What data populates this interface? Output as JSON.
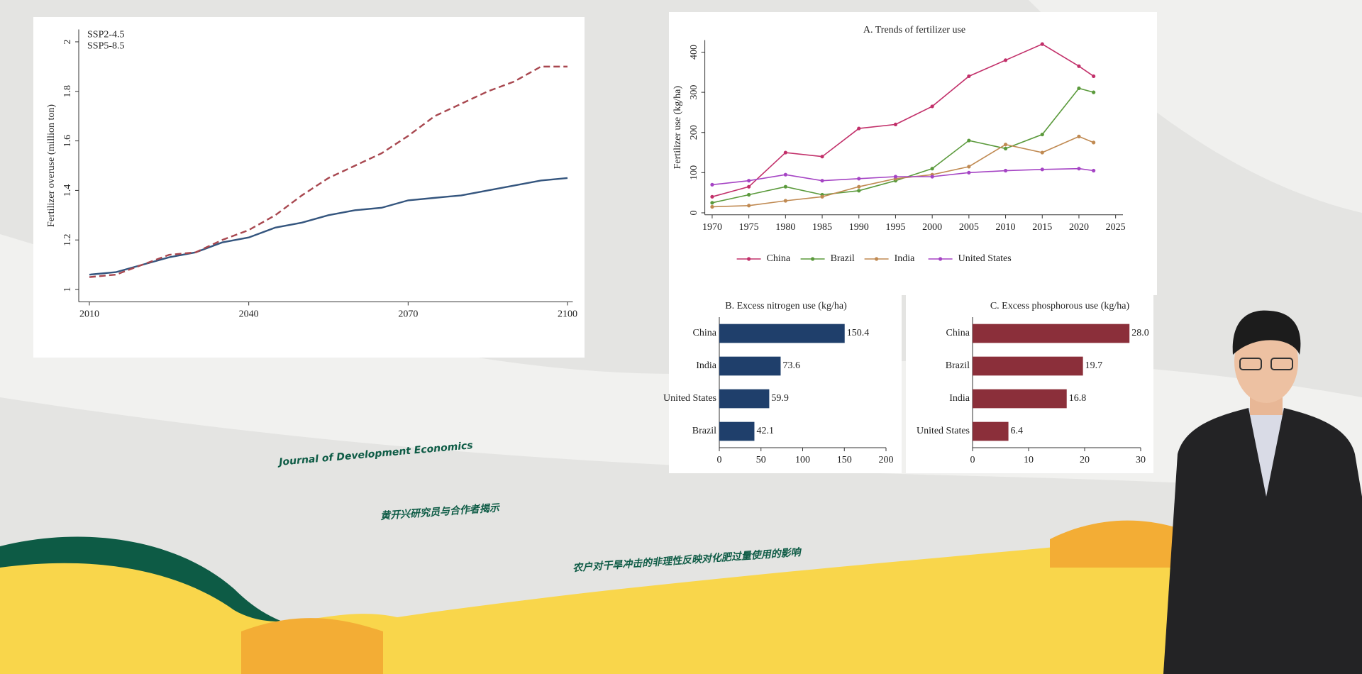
{
  "banner": {
    "journal": "Journal of Development Economics",
    "line1": "黄开兴研究员与合作者揭示",
    "line2": "农户对干旱冲击的非理性反映对化肥过量使用的影响"
  },
  "chart_data": [
    {
      "type": "line",
      "ylabel": "Fertilizer overuse (million ton)",
      "legend": "upper left",
      "x": [
        2010,
        2015,
        2020,
        2025,
        2030,
        2035,
        2040,
        2045,
        2050,
        2055,
        2060,
        2065,
        2070,
        2075,
        2080,
        2085,
        2090,
        2095,
        2100
      ],
      "series": [
        {
          "name": "SSP2-4.5",
          "color": "#34557e",
          "line_style": "solid",
          "values": [
            1.06,
            1.07,
            1.1,
            1.13,
            1.15,
            1.19,
            1.21,
            1.25,
            1.27,
            1.3,
            1.32,
            1.33,
            1.36,
            1.37,
            1.38,
            1.4,
            1.42,
            1.44,
            1.45
          ]
        },
        {
          "name": "SSP5-8.5",
          "color": "#a8474f",
          "line_style": "dashed",
          "values": [
            1.05,
            1.06,
            1.1,
            1.14,
            1.15,
            1.2,
            1.24,
            1.3,
            1.38,
            1.45,
            1.5,
            1.55,
            1.62,
            1.7,
            1.75,
            1.8,
            1.84,
            1.9,
            1.9
          ]
        }
      ],
      "xlim": [
        2008,
        2101
      ],
      "xticks": [
        2010,
        2040,
        2070,
        2100
      ],
      "ylim": [
        0.95,
        2.05
      ],
      "yticks": [
        1,
        1.2,
        1.4,
        1.6,
        1.8,
        2
      ]
    },
    {
      "type": "line",
      "title": "A. Trends of fertilizer use",
      "ylabel": "Fertilizer use (kg/ha)",
      "legend": "bottom",
      "markers": true,
      "x": [
        1970,
        1975,
        1980,
        1985,
        1990,
        1995,
        2000,
        2005,
        2010,
        2015,
        2020,
        2022
      ],
      "series": [
        {
          "name": "China",
          "color": "#c2306a",
          "line_style": "solid",
          "values": [
            40,
            65,
            150,
            140,
            210,
            220,
            265,
            340,
            380,
            420,
            365,
            340
          ]
        },
        {
          "name": "Brazil",
          "color": "#5b9a3c",
          "line_style": "solid",
          "values": [
            25,
            45,
            65,
            45,
            55,
            80,
            110,
            180,
            160,
            195,
            310,
            300
          ]
        },
        {
          "name": "India",
          "color": "#c08a52",
          "line_style": "solid",
          "values": [
            15,
            18,
            30,
            40,
            65,
            85,
            95,
            115,
            170,
            150,
            190,
            175
          ]
        },
        {
          "name": "United States",
          "color": "#a544c4",
          "line_style": "solid",
          "values": [
            70,
            80,
            95,
            80,
            85,
            90,
            90,
            100,
            105,
            108,
            110,
            105
          ]
        }
      ],
      "xlim": [
        1969,
        2026
      ],
      "xticks": [
        1970,
        1975,
        1980,
        1985,
        1990,
        1995,
        2000,
        2005,
        2010,
        2015,
        2020,
        2025
      ],
      "ylim": [
        -5,
        430
      ],
      "yticks": [
        0,
        100,
        200,
        300,
        400
      ]
    },
    {
      "type": "hbar",
      "title": "B. Excess nitrogen use (kg/ha)",
      "color": "#1f3f6b",
      "categories": [
        "China",
        "India",
        "United States",
        "Brazil"
      ],
      "values": [
        150.4,
        73.6,
        59.9,
        42.1
      ],
      "xlim": [
        0,
        200
      ],
      "xticks": [
        0,
        50,
        100,
        150,
        200
      ]
    },
    {
      "type": "hbar",
      "title": "C. Excess phosphorous use (kg/ha)",
      "color": "#8b2f3a",
      "categories": [
        "China",
        "Brazil",
        "India",
        "United States"
      ],
      "values": [
        28.0,
        19.7,
        16.8,
        6.4
      ],
      "value_labels": [
        "28.0",
        "19.7",
        "16.8",
        "6.4"
      ],
      "xlim": [
        0,
        30
      ],
      "xticks": [
        0,
        10,
        20,
        30
      ]
    }
  ]
}
